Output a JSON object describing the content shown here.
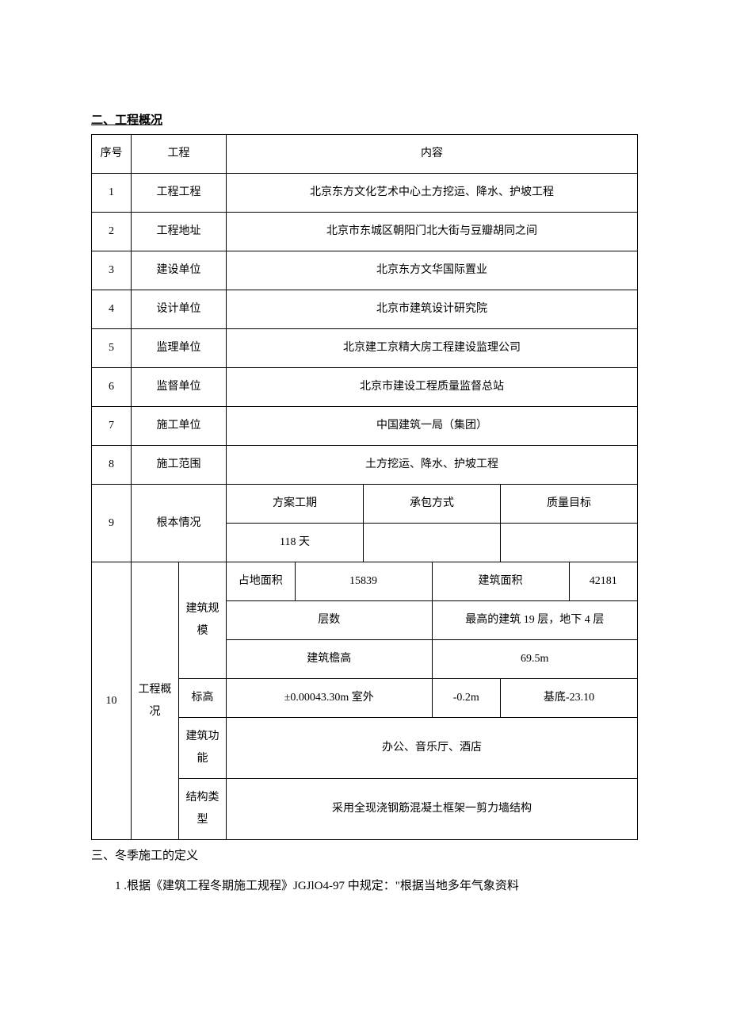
{
  "headings": {
    "section2": "二、工程概况",
    "section3": "三、冬季施工的定义"
  },
  "table": {
    "header": {
      "seq": "序号",
      "project": "工程",
      "content": "内容"
    },
    "rows": [
      {
        "seq": "1",
        "project": "工程工程",
        "content": "北京东方文化艺术中心土方挖运、降水、护坡工程"
      },
      {
        "seq": "2",
        "project": "工程地址",
        "content": "北京市东城区朝阳门北大街与豆瓣胡同之间"
      },
      {
        "seq": "3",
        "project": "建设单位",
        "content": "北京东方文华国际置业"
      },
      {
        "seq": "4",
        "project": "设计单位",
        "content": "北京市建筑设计研究院"
      },
      {
        "seq": "5",
        "project": "监理单位",
        "content": "北京建工京精大房工程建设监理公司"
      },
      {
        "seq": "6",
        "project": "监督单位",
        "content": "北京市建设工程质量监督总站"
      },
      {
        "seq": "7",
        "project": "施工单位",
        "content": "中国建筑一局（集团）"
      },
      {
        "seq": "8",
        "project": "施工范围",
        "content": "土方挖运、降水、护坡工程"
      }
    ],
    "row9": {
      "seq": "9",
      "project": "根本情况",
      "col1_label": "方案工期",
      "col1_value": "118 天",
      "col2_label": "承包方式",
      "col2_value": "",
      "col3_label": "质量目标",
      "col3_value": ""
    },
    "row10": {
      "seq": "10",
      "project": "工程概况",
      "scale": {
        "label": "建筑规模",
        "land_area_label": "占地面积",
        "land_area_value": "15839",
        "build_area_label": "建筑面积",
        "build_area_value": "42181",
        "floors_label": "层数",
        "floors_value": "最高的建筑 19 层，地下 4 层",
        "eaves_label": "建筑檐高",
        "eaves_value": "69.5m"
      },
      "elevation": {
        "label": "标高",
        "v1": "±0.00043.30m 室外",
        "v2": "-0.2m",
        "v3": "基底-23.10"
      },
      "function": {
        "label": "建筑功能",
        "value": "办公、音乐厅、酒店"
      },
      "structure": {
        "label": "结构类型",
        "value": "采用全现浇钢筋混凝土框架一剪力墙结构"
      }
    }
  },
  "paragraph": "1 .根据《建筑工程冬期施工规程》JGJlO4-97 中规定：\"根据当地多年气象资料"
}
